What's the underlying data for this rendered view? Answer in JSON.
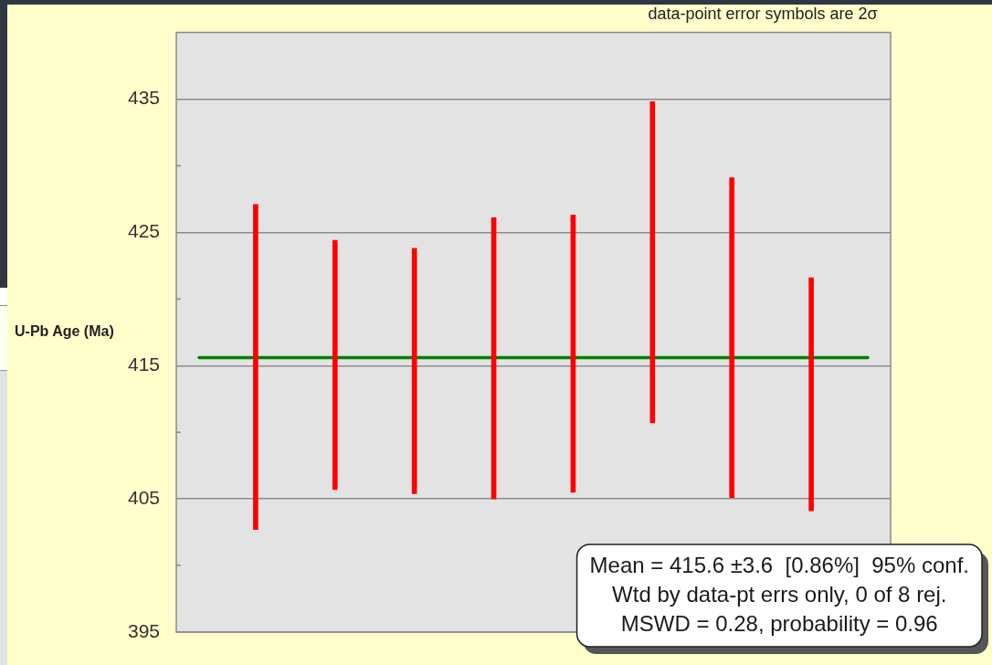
{
  "chart_data": {
    "type": "bar",
    "categories": [
      null,
      null,
      null,
      null,
      null,
      null,
      null,
      null
    ],
    "base": [
      402.7,
      405.7,
      405.4,
      405.0,
      405.5,
      410.7,
      405.1,
      404.1
    ],
    "values": [
      24.4,
      18.7,
      18.4,
      21.1,
      20.8,
      24.1,
      24.0,
      17.5
    ],
    "color": "#ff0000",
    "ylabel": "U-Pb Age (Ma)",
    "ylim": [
      395,
      440
    ],
    "yticks": [
      395,
      {
        "value": 400,
        "label": null
      },
      405,
      {
        "value": 410,
        "label": null
      },
      415,
      {
        "value": 420,
        "label": null
      },
      425,
      {
        "value": 430,
        "label": null
      },
      435
    ],
    "grid": "y",
    "legend": false,
    "tick_labels": "y",
    "ref_lines": [
      {
        "axis": "y",
        "value": 415.6,
        "color": "#008000"
      }
    ],
    "annotations": [
      "data-point error symbols are 2σ",
      "Mean = 415.6 ±3.6  [0.86%]  95% conf.",
      "Wtd by data-pt errs only, 0 of 8 rej.",
      "MSWD = 0.28, probability = 0.96"
    ]
  }
}
